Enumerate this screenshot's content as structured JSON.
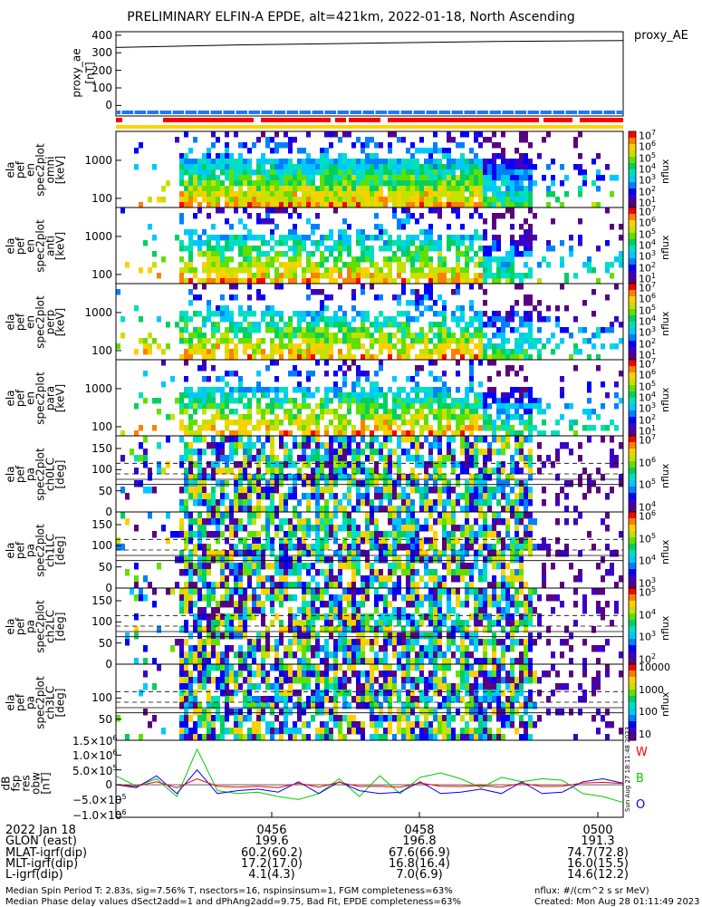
{
  "title": "PRELIMINARY ELFIN-A EPDE, alt=421km, 2022-01-18, North Ascending",
  "colors": {
    "red": "#ff0000",
    "blue": "#1e78ff",
    "yellow": "#ffd400"
  },
  "proxy_panel": {
    "legend": "proxy_AE",
    "ylabel": [
      "proxy_ae",
      "[nT]"
    ],
    "yticks": [
      "400",
      "300",
      "200",
      "100",
      "0"
    ],
    "chart_data": {
      "type": "line",
      "x": [
        0,
        0.25,
        0.5,
        0.75,
        1.0
      ],
      "values": [
        330,
        345,
        355,
        365,
        370
      ],
      "ylim": [
        -60,
        420
      ]
    }
  },
  "spec_panels": [
    {
      "ylabel": [
        "ela",
        "pef",
        "en",
        "spec2plot",
        "omni",
        "[keV]"
      ],
      "yticks": [
        "1000",
        "100"
      ],
      "cbticks": [
        "10",
        "10",
        "10",
        "10",
        "10",
        "10",
        "10"
      ],
      "cbexp": [
        "7",
        "6",
        "5",
        "4",
        "3",
        "2",
        "1"
      ],
      "unit": "nflux"
    },
    {
      "ylabel": [
        "ela",
        "pef",
        "en",
        "spec2plot",
        "anti",
        "[keV]"
      ],
      "yticks": [
        "1000",
        "100"
      ],
      "cbticks": [
        "10",
        "10",
        "10",
        "10",
        "10",
        "10",
        "10"
      ],
      "cbexp": [
        "7",
        "6",
        "5",
        "4",
        "3",
        "2",
        "1"
      ],
      "unit": "nflux"
    },
    {
      "ylabel": [
        "ela",
        "pef",
        "en",
        "spec2plot",
        "perp",
        "[keV]"
      ],
      "yticks": [
        "1000",
        "100"
      ],
      "cbticks": [
        "10",
        "10",
        "10",
        "10",
        "10",
        "10",
        "10"
      ],
      "cbexp": [
        "7",
        "6",
        "5",
        "4",
        "3",
        "2",
        "1"
      ],
      "unit": "nflux"
    },
    {
      "ylabel": [
        "ela",
        "pef",
        "en",
        "spec2plot",
        "para",
        "[keV]"
      ],
      "yticks": [
        "1000",
        "100"
      ],
      "cbticks": [
        "10",
        "10",
        "10",
        "10",
        "10",
        "10",
        "10"
      ],
      "cbexp": [
        "7",
        "6",
        "5",
        "4",
        "3",
        "2",
        "1"
      ],
      "unit": "nflux"
    }
  ],
  "pa_panels": [
    {
      "ylabel": [
        "ela",
        "pef",
        "pa",
        "spec2plot",
        "ch0LC",
        "[deg]"
      ],
      "yticks": [
        "150",
        "100",
        "50",
        "0"
      ],
      "cbticks": [
        "10",
        "10",
        "10",
        "10"
      ],
      "cbexp": [
        "7",
        "6",
        "5",
        "4"
      ],
      "unit": "nflux"
    },
    {
      "ylabel": [
        "ela",
        "pef",
        "pa",
        "spec2plot",
        "ch1LC",
        "[deg]"
      ],
      "yticks": [
        "150",
        "100",
        "50",
        "0"
      ],
      "cbticks": [
        "10",
        "10",
        "10",
        "10"
      ],
      "cbexp": [
        "6",
        "5",
        "4",
        "3"
      ],
      "unit": "nflux"
    },
    {
      "ylabel": [
        "ela",
        "pef",
        "pa",
        "spec2plot",
        "ch2LC",
        "[deg]"
      ],
      "yticks": [
        "150",
        "100",
        "50",
        "0"
      ],
      "cbticks": [
        "10",
        "10",
        "10",
        "10"
      ],
      "cbexp": [
        "5",
        "4",
        "3",
        "2"
      ],
      "unit": "nflux"
    },
    {
      "ylabel": [
        "ela",
        "pef",
        "pa",
        "spec2plot",
        "ch3LC",
        "[deg]"
      ],
      "yticks": [
        "100",
        "50"
      ],
      "cbticks": [
        "10000",
        "1000",
        "100",
        "10"
      ],
      "cbexp": [
        "",
        "",
        "",
        ""
      ],
      "unit": "nflux"
    }
  ],
  "bfield_panel": {
    "ylabel": [
      "dB",
      "fsp",
      "res",
      "obw",
      "[nT]"
    ],
    "yticks": [
      "1.5×10",
      "1.0×10",
      "5.0×10",
      "0",
      "−5.0×10",
      "−1.0×10"
    ],
    "yexp": [
      "6",
      "6",
      "5",
      "",
      "5",
      "6"
    ],
    "legend": [
      "W",
      "B",
      "O"
    ],
    "side_note": "Sun Aug 27 18:11:48 2023",
    "chart_data": {
      "type": "line",
      "ylim": [
        -1100000,
        1500000
      ],
      "x": [
        0,
        0.04,
        0.08,
        0.12,
        0.16,
        0.2,
        0.24,
        0.28,
        0.32,
        0.36,
        0.4,
        0.44,
        0.48,
        0.52,
        0.56,
        0.6,
        0.64,
        0.68,
        0.72,
        0.76,
        0.8,
        0.84,
        0.88,
        0.92,
        0.96,
        1.0
      ],
      "series": [
        {
          "color": "#00cc00",
          "values": [
            300000,
            -50000,
            200000,
            -400000,
            1200000,
            -200000,
            -300000,
            -250000,
            -400000,
            -500000,
            -300000,
            200000,
            -400000,
            300000,
            -300000,
            250000,
            400000,
            200000,
            -100000,
            250000,
            100000,
            200000,
            150000,
            -300000,
            -400000,
            -600000
          ]
        },
        {
          "color": "#0000ff",
          "values": [
            0,
            -100000,
            300000,
            -300000,
            500000,
            -300000,
            -200000,
            -150000,
            -250000,
            100000,
            -300000,
            100000,
            -200000,
            -300000,
            -250000,
            100000,
            -300000,
            -250000,
            -150000,
            -300000,
            100000,
            -300000,
            -250000,
            100000,
            200000,
            50000
          ]
        },
        {
          "color": "#ff0000",
          "values": [
            0,
            -50000,
            100000,
            -100000,
            200000,
            -50000,
            -80000,
            -50000,
            -100000,
            50000,
            -80000,
            80000,
            -60000,
            -50000,
            -80000,
            60000,
            -50000,
            -60000,
            -30000,
            -80000,
            50000,
            -60000,
            -50000,
            60000,
            80000,
            40000
          ]
        }
      ]
    }
  },
  "ephem": {
    "rows": [
      {
        "label": "2022 Jan 18",
        "values": [
          "0456",
          "0458",
          "0500"
        ]
      },
      {
        "label": "GLON (east)",
        "values": [
          "199.6",
          "196.8",
          "191.3"
        ]
      },
      {
        "label": "MLAT-igrf(dip)",
        "values": [
          "60.2(60.2)",
          "67.6(66.9)",
          "74.7(72.8)"
        ]
      },
      {
        "label": "MLT-igrf(dip)",
        "values": [
          "17.2(17.0)",
          "16.8(16.4)",
          "16.0(15.5)"
        ]
      },
      {
        "label": "L-igrf(dip)",
        "values": [
          "4.1(4.3)",
          "7.0(6.9)",
          "14.6(12.2)"
        ]
      }
    ]
  },
  "footer": {
    "left1": "Median Spin Period T: 2.83s, sig=7.56% T, nsectors=16, nspinsinsum=1, FGM completeness=63%",
    "left2": "Median Phase delay values dSect2add=1 and dPhAng2add=9.75, Bad Fit, EPDE completeness=63%",
    "right1": "nflux: #/(cm^2 s sr MeV)",
    "right2": "Created: Mon Aug 28 01:11:49 2023"
  }
}
